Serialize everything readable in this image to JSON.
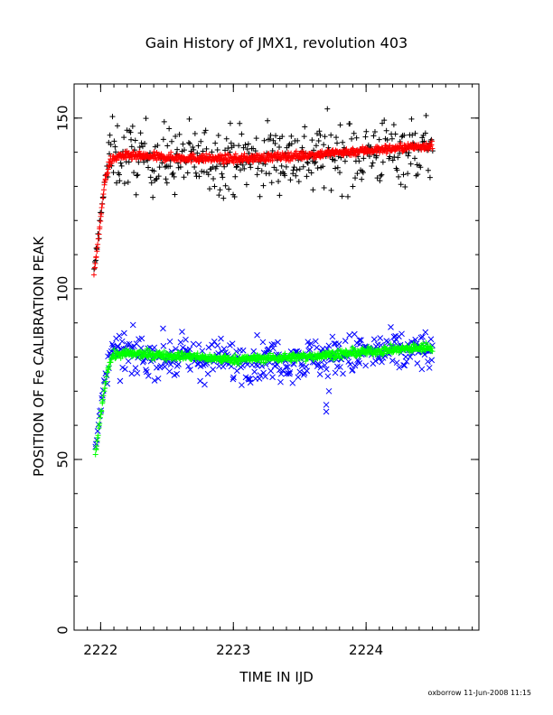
{
  "chart_data": {
    "type": "scatter",
    "title": "Gain History of JMX1, revolution 403",
    "xlabel": "TIME IN IJD",
    "ylabel": "POSITION OF Fe CALIBRATION PEAK",
    "xlim": [
      2221.8,
      2224.85
    ],
    "ylim": [
      0,
      160
    ],
    "xticks": [
      2222,
      2223,
      2224
    ],
    "yticks": [
      0,
      50,
      100,
      150
    ],
    "grid": false,
    "legend": "none",
    "footer": "oxborrow 11-Jun-2008 11:15",
    "series": [
      {
        "role": "upper-data",
        "marker": "plus",
        "color": "#000000",
        "anchors": [
          {
            "x": 2221.95,
            "y": 104
          },
          {
            "x": 2221.99,
            "y": 118
          },
          {
            "x": 2222.03,
            "y": 132
          },
          {
            "x": 2222.08,
            "y": 139
          },
          {
            "x": 2222.15,
            "y": 139
          },
          {
            "x": 2222.5,
            "y": 138
          },
          {
            "x": 2223.0,
            "y": 138
          },
          {
            "x": 2223.5,
            "y": 139
          },
          {
            "x": 2224.0,
            "y": 140
          },
          {
            "x": 2224.5,
            "y": 141
          }
        ],
        "x_range": [
          2221.95,
          2224.5
        ],
        "scatter": 5,
        "count": 420,
        "outliers": [
          {
            "x": 2222.07,
            "y": 145
          },
          {
            "x": 2223.2,
            "y": 127
          },
          {
            "x": 2223.6,
            "y": 129
          },
          {
            "x": 2223.9,
            "y": 130
          },
          {
            "x": 2222.5,
            "y": 131
          },
          {
            "x": 2223.35,
            "y": 144
          }
        ]
      },
      {
        "role": "upper-fit",
        "marker": "plus",
        "color": "#ff0000",
        "anchors": [
          {
            "x": 2221.95,
            "y": 104
          },
          {
            "x": 2221.99,
            "y": 117
          },
          {
            "x": 2222.03,
            "y": 131
          },
          {
            "x": 2222.07,
            "y": 137.5
          },
          {
            "x": 2222.15,
            "y": 139
          },
          {
            "x": 2222.5,
            "y": 138.5
          },
          {
            "x": 2223.0,
            "y": 138
          },
          {
            "x": 2223.5,
            "y": 139
          },
          {
            "x": 2224.0,
            "y": 140.5
          },
          {
            "x": 2224.5,
            "y": 142
          }
        ],
        "x_range": [
          2221.95,
          2224.5
        ],
        "scatter": 0.6,
        "count": 700
      },
      {
        "role": "lower-data",
        "marker": "cross",
        "color": "#0000ff",
        "anchors": [
          {
            "x": 2221.96,
            "y": 52
          },
          {
            "x": 2222.0,
            "y": 65
          },
          {
            "x": 2222.05,
            "y": 78
          },
          {
            "x": 2222.1,
            "y": 81
          },
          {
            "x": 2222.5,
            "y": 80
          },
          {
            "x": 2223.0,
            "y": 79
          },
          {
            "x": 2223.5,
            "y": 79.5
          },
          {
            "x": 2224.0,
            "y": 81
          },
          {
            "x": 2224.5,
            "y": 82
          }
        ],
        "x_range": [
          2221.96,
          2224.5
        ],
        "scatter": 3,
        "count": 420,
        "outliers": [
          {
            "x": 2223.7,
            "y": 64
          },
          {
            "x": 2223.7,
            "y": 66
          },
          {
            "x": 2223.72,
            "y": 70
          },
          {
            "x": 2223.95,
            "y": 85
          },
          {
            "x": 2222.75,
            "y": 73
          }
        ]
      },
      {
        "role": "lower-fit",
        "marker": "plus",
        "color": "#00ff00",
        "anchors": [
          {
            "x": 2221.96,
            "y": 51
          },
          {
            "x": 2222.0,
            "y": 63
          },
          {
            "x": 2222.05,
            "y": 76
          },
          {
            "x": 2222.09,
            "y": 80.5
          },
          {
            "x": 2222.2,
            "y": 81
          },
          {
            "x": 2222.5,
            "y": 80.5
          },
          {
            "x": 2223.0,
            "y": 79.3
          },
          {
            "x": 2223.5,
            "y": 80
          },
          {
            "x": 2224.0,
            "y": 81.5
          },
          {
            "x": 2224.5,
            "y": 83
          }
        ],
        "x_range": [
          2221.96,
          2224.5
        ],
        "scatter": 0.6,
        "count": 700
      }
    ]
  }
}
